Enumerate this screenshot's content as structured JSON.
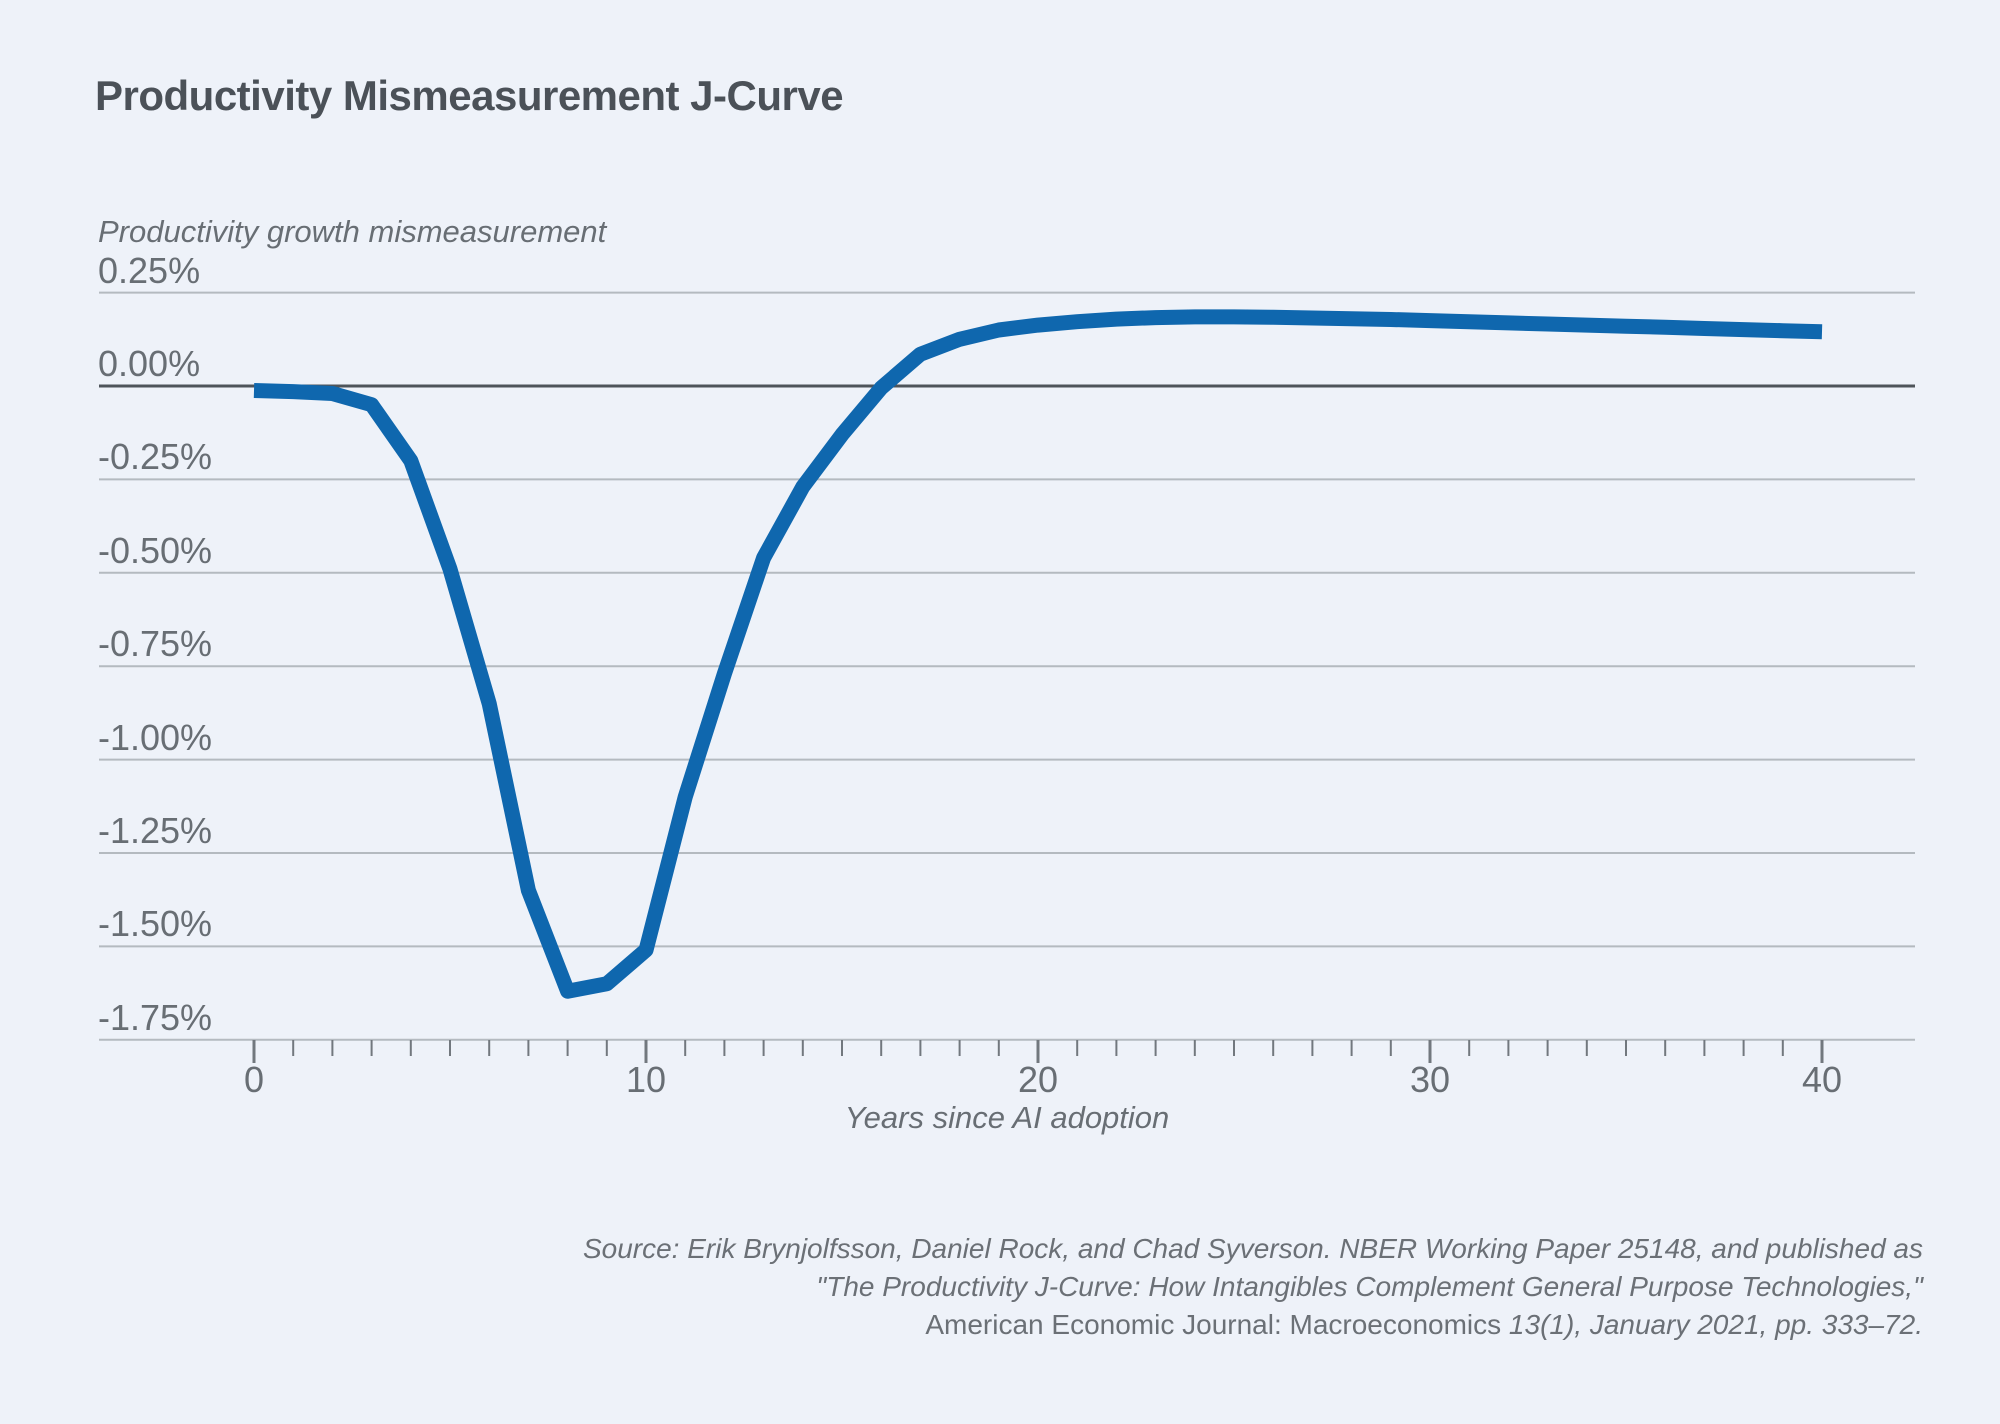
{
  "header": {
    "title": "Productivity Mismeasurement J-Curve"
  },
  "colors": {
    "background": "#eef2f9",
    "title_text": "#4b5158",
    "axis_text": "#686e74",
    "gridline": "#b4bac0",
    "zero_line": "#4e545a",
    "tick_mark": "#72787e",
    "series_line": "#0f67ae",
    "source_text": "#6b7076"
  },
  "chart_data": {
    "type": "line",
    "title": "Productivity Mismeasurement J-Curve",
    "y_axis_title": "Productivity growth mismeasurement",
    "x_axis_title": "Years since AI adoption",
    "xlim": [
      0,
      40
    ],
    "ylim": [
      -1.75,
      0.25
    ],
    "grid": true,
    "legend": "none",
    "x_major_ticks": [
      0,
      10,
      20,
      30,
      40
    ],
    "x_minor_tick_step": 1,
    "y_ticks": [
      {
        "label": "0.25%",
        "value": 0.25
      },
      {
        "label": "0.00%",
        "value": 0.0
      },
      {
        "label": "-0.25%",
        "value": -0.25
      },
      {
        "label": "-0.50%",
        "value": -0.5
      },
      {
        "label": "-0.75%",
        "value": -0.75
      },
      {
        "label": "-1.00%",
        "value": -1.0
      },
      {
        "label": "-1.25%",
        "value": -1.25
      },
      {
        "label": "-1.50%",
        "value": -1.5
      },
      {
        "label": "-1.75%",
        "value": -1.75
      }
    ],
    "x": [
      0,
      1,
      2,
      3,
      4,
      5,
      6,
      7,
      8,
      9,
      10,
      11,
      12,
      13,
      14,
      15,
      16,
      17,
      18,
      19,
      20,
      21,
      22,
      23,
      24,
      25,
      26,
      27,
      28,
      29,
      30,
      31,
      32,
      33,
      34,
      35,
      36,
      37,
      38,
      39,
      40
    ],
    "series": [
      {
        "name": "Productivity growth mismeasurement (%)",
        "color": "#0f67ae",
        "values": [
          -0.012,
          -0.015,
          -0.02,
          -0.05,
          -0.2,
          -0.49,
          -0.85,
          -1.35,
          -1.62,
          -1.6,
          -1.51,
          -1.1,
          -0.77,
          -0.46,
          -0.27,
          -0.13,
          -0.005,
          0.085,
          0.125,
          0.15,
          0.163,
          0.172,
          0.179,
          0.183,
          0.185,
          0.185,
          0.184,
          0.182,
          0.18,
          0.178,
          0.175,
          0.172,
          0.169,
          0.166,
          0.163,
          0.16,
          0.157,
          0.154,
          0.151,
          0.148,
          0.145
        ]
      }
    ]
  },
  "source": {
    "line1": "Source:  Erik Brynjolfsson, Daniel Rock, and Chad Syverson. NBER Working Paper 25148, and published as",
    "line2": "\"The Productivity J-Curve: How Intangibles Complement General Purpose Technologies,\"",
    "line3_journal": "American Economic Journal: Macroeconomics",
    "line3_rest": " 13(1), January 2021, pp. 333–72."
  }
}
